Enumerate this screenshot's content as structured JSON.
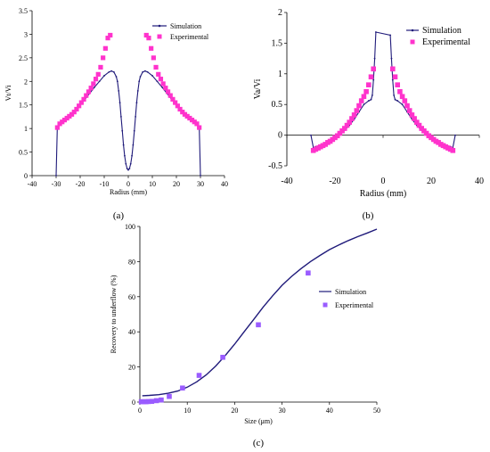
{
  "panel_labels": [
    "(a)",
    "(b)",
    "(c)"
  ],
  "colors": {
    "simulation": "#1f1a7a",
    "experimental": "#ff33cc",
    "experimental_c": "#9a5cff"
  },
  "chart_data": [
    {
      "type": "line",
      "panel": "(a)",
      "xlabel": "Radius (mm)",
      "ylabel": "Vt/Vi",
      "xlim": [
        -40,
        40
      ],
      "ylim": [
        0,
        3.5
      ],
      "xticks": [
        -40,
        -30,
        -20,
        -10,
        0,
        10,
        20,
        30,
        40
      ],
      "yticks": [
        0,
        0.5,
        1,
        1.5,
        2,
        2.5,
        3,
        3.5
      ],
      "ytick_labels": [
        "0",
        "0.5",
        "1",
        "1.5",
        "2",
        "2.5",
        "3",
        "3.5"
      ],
      "legend_position": "top-right",
      "series": [
        {
          "name": "Simulation",
          "style": "line-with-small-markers",
          "x": [
            -30,
            -29.5,
            -29,
            -28,
            -26,
            -24,
            -22,
            -20,
            -18,
            -16,
            -14,
            -12,
            -10,
            -8,
            -7,
            -6,
            -5,
            -4.5,
            -4,
            -3.5,
            -3,
            -2.5,
            -2,
            -1.5,
            -1,
            -0.5,
            0,
            0.5,
            1,
            1.5,
            2,
            2.5,
            3,
            3.5,
            4,
            4.5,
            5,
            6,
            7,
            8,
            10,
            12,
            14,
            16,
            18,
            20,
            22,
            24,
            26,
            28,
            29,
            29.5,
            30
          ],
          "y": [
            0,
            1.0,
            1.05,
            1.1,
            1.2,
            1.3,
            1.4,
            1.5,
            1.62,
            1.75,
            1.88,
            2.0,
            2.12,
            2.2,
            2.22,
            2.2,
            2.1,
            2.0,
            1.8,
            1.55,
            1.25,
            0.95,
            0.65,
            0.42,
            0.25,
            0.15,
            0.12,
            0.15,
            0.25,
            0.42,
            0.65,
            0.95,
            1.25,
            1.55,
            1.8,
            2.0,
            2.1,
            2.2,
            2.22,
            2.2,
            2.12,
            2.0,
            1.88,
            1.75,
            1.62,
            1.5,
            1.4,
            1.3,
            1.2,
            1.1,
            1.05,
            1.0,
            0
          ]
        },
        {
          "name": "Experimental",
          "style": "square-markers",
          "x": [
            -29.5,
            -28.5,
            -27.5,
            -26.5,
            -25.5,
            -24.5,
            -23.5,
            -22.5,
            -21.5,
            -20.5,
            -19.5,
            -18.5,
            -17.5,
            -16.5,
            -15.5,
            -14.5,
            -13.5,
            -12.5,
            -11.5,
            -10.5,
            -9.5,
            -8.5,
            -7.5,
            7.5,
            8.5,
            9.5,
            10.5,
            11.5,
            12.5,
            13.5,
            14.5,
            15.5,
            16.5,
            17.5,
            18.5,
            19.5,
            20.5,
            21.5,
            22.5,
            23.5,
            24.5,
            25.5,
            26.5,
            27.5,
            28.5,
            29.5
          ],
          "y": [
            1.02,
            1.1,
            1.14,
            1.18,
            1.22,
            1.26,
            1.3,
            1.35,
            1.41,
            1.48,
            1.55,
            1.62,
            1.7,
            1.78,
            1.86,
            1.95,
            2.05,
            2.15,
            2.3,
            2.5,
            2.7,
            2.92,
            2.98,
            2.98,
            2.92,
            2.7,
            2.5,
            2.3,
            2.15,
            2.05,
            1.95,
            1.86,
            1.78,
            1.7,
            1.62,
            1.55,
            1.48,
            1.41,
            1.35,
            1.3,
            1.26,
            1.22,
            1.18,
            1.14,
            1.1,
            1.02
          ]
        }
      ]
    },
    {
      "type": "line",
      "panel": "(b)",
      "xlabel": "Radius (mm)",
      "ylabel": "Va/Vi",
      "xlim": [
        -40,
        40
      ],
      "ylim": [
        -0.5,
        2
      ],
      "xticks": [
        -40,
        -20,
        0,
        20,
        40
      ],
      "yticks": [
        -0.5,
        0,
        0.5,
        1,
        1.5,
        2
      ],
      "ytick_labels": [
        "-0.5",
        "0",
        "0.5",
        "1",
        "1.5",
        "2"
      ],
      "legend_position": "top-right",
      "series": [
        {
          "name": "Simulation",
          "style": "line-with-small-markers",
          "x": [
            -30,
            -29,
            -28,
            -26,
            -24,
            -22,
            -20,
            -18,
            -16,
            -14,
            -12,
            -10,
            -8,
            -6,
            -5,
            -4.5,
            -4,
            -3.5,
            -3,
            3,
            3.5,
            4,
            4.5,
            5,
            6,
            8,
            10,
            12,
            14,
            16,
            18,
            20,
            22,
            24,
            26,
            28,
            29,
            30
          ],
          "y": [
            0,
            -0.2,
            -0.19,
            -0.16,
            -0.13,
            -0.09,
            -0.05,
            0.01,
            0.08,
            0.16,
            0.26,
            0.38,
            0.5,
            0.56,
            0.58,
            0.65,
            0.9,
            1.25,
            1.68,
            1.63,
            1.25,
            0.9,
            0.65,
            0.58,
            0.56,
            0.5,
            0.38,
            0.26,
            0.16,
            0.08,
            0.01,
            -0.05,
            -0.09,
            -0.13,
            -0.16,
            -0.19,
            -0.2,
            0
          ]
        },
        {
          "name": "Experimental",
          "style": "square-markers",
          "x": [
            -29,
            -28,
            -27,
            -26,
            -25,
            -24,
            -23,
            -22,
            -21,
            -20,
            -19,
            -18,
            -17,
            -16,
            -15,
            -14,
            -13,
            -12,
            -11,
            -10,
            -9,
            -8,
            -7,
            -6,
            -5,
            -4,
            4,
            5,
            6,
            7,
            8,
            9,
            10,
            11,
            12,
            13,
            14,
            15,
            16,
            17,
            18,
            19,
            20,
            21,
            22,
            23,
            24,
            25,
            26,
            27,
            28,
            29
          ],
          "y": [
            -0.25,
            -0.23,
            -0.21,
            -0.19,
            -0.17,
            -0.15,
            -0.12,
            -0.1,
            -0.07,
            -0.04,
            -0.01,
            0.03,
            0.07,
            0.11,
            0.16,
            0.21,
            0.27,
            0.33,
            0.4,
            0.48,
            0.56,
            0.63,
            0.71,
            0.82,
            0.95,
            1.08,
            1.08,
            0.95,
            0.82,
            0.71,
            0.63,
            0.56,
            0.48,
            0.4,
            0.33,
            0.27,
            0.21,
            0.16,
            0.11,
            0.07,
            0.03,
            -0.01,
            -0.04,
            -0.07,
            -0.1,
            -0.12,
            -0.15,
            -0.17,
            -0.19,
            -0.21,
            -0.23,
            -0.25
          ]
        }
      ]
    },
    {
      "type": "line",
      "panel": "(c)",
      "xlabel": "Size (μm)",
      "ylabel": "Recovery to underflow (%)",
      "xlim": [
        0,
        50
      ],
      "ylim": [
        0,
        100
      ],
      "xticks": [
        0,
        10,
        20,
        30,
        40,
        50
      ],
      "yticks": [
        0,
        20,
        40,
        60,
        80,
        100
      ],
      "ytick_labels": [
        "0",
        "20",
        "40",
        "60",
        "80",
        "100"
      ],
      "legend_position": "right",
      "series": [
        {
          "name": "Simulation",
          "style": "line",
          "x": [
            0.5,
            2,
            4,
            6,
            8,
            10,
            12,
            14,
            16,
            18,
            20,
            22,
            24,
            26,
            28,
            30,
            32,
            34,
            36,
            38,
            40,
            42,
            44,
            46,
            48,
            50
          ],
          "y": [
            3.6,
            3.8,
            4.2,
            5.0,
            6.3,
            8.5,
            11.5,
            15.5,
            20.5,
            26.5,
            33,
            40,
            47,
            54,
            60.5,
            66.5,
            71.5,
            76,
            80,
            83.5,
            86.8,
            89.5,
            92,
            94.2,
            96.3,
            98.5
          ]
        },
        {
          "name": "Experimental",
          "style": "square-markers",
          "x": [
            0.3,
            0.8,
            1.3,
            1.8,
            2.5,
            3.5,
            4.5,
            6.2,
            9,
            12.5,
            17.5,
            25,
            35.5
          ],
          "y": [
            0.2,
            0.2,
            0.2,
            0.3,
            0.4,
            0.8,
            1.2,
            3.2,
            8,
            15.2,
            25.5,
            44,
            73.5
          ]
        }
      ]
    }
  ]
}
